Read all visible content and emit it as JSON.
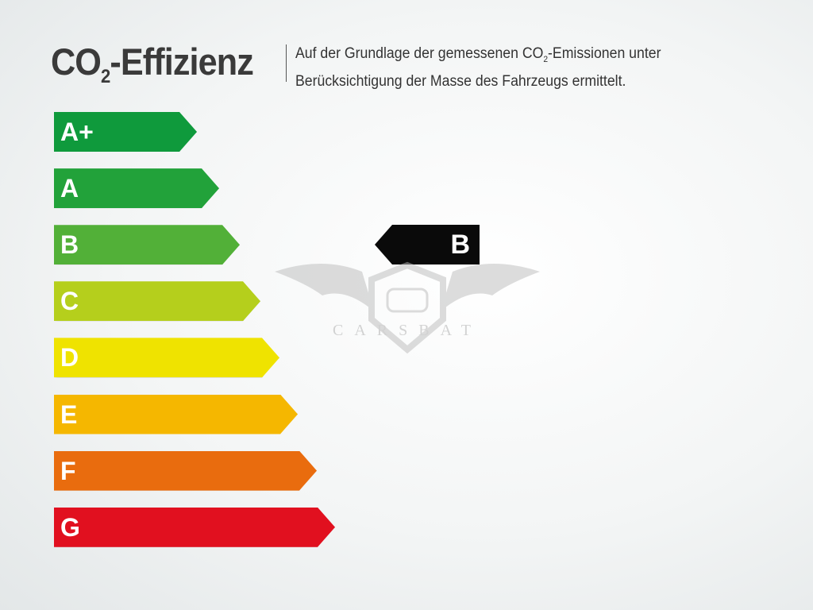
{
  "header": {
    "title_main": "CO",
    "title_sub": "2",
    "title_rest": "-Effizienz",
    "desc_line1_pre": "Auf der Grundlage der gemessenen CO",
    "desc_line1_sub": "2",
    "desc_line1_post": "-Emissionen unter",
    "desc_line2": "Berücksichtigung der Masse des Fahrzeugs ermittelt."
  },
  "classes": [
    {
      "label": "A+",
      "color": "#0f9a3c"
    },
    {
      "label": "A",
      "color": "#22a23a"
    },
    {
      "label": "B",
      "color": "#52b038"
    },
    {
      "label": "C",
      "color": "#b5cf1c"
    },
    {
      "label": "D",
      "color": "#efe300"
    },
    {
      "label": "E",
      "color": "#f5b700"
    },
    {
      "label": "F",
      "color": "#e96c0e"
    },
    {
      "label": "G",
      "color": "#e1101f"
    }
  ],
  "rating": {
    "label": "B",
    "color": "#0a0a0a"
  },
  "watermark": {
    "text": "CARSBAT"
  }
}
